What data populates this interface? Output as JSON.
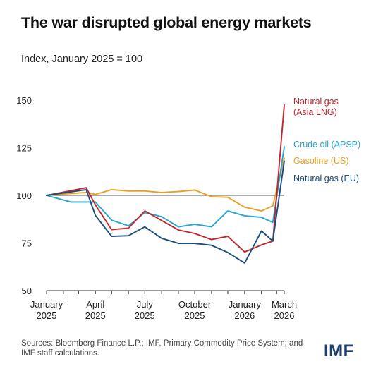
{
  "title": "The war disrupted global energy markets",
  "subtitle": "Index, January 2025 = 100",
  "source_note": "Sources: Bloomberg Finance L.P.; IMF, Primary Commodity Price System; and IMF staff calculations.",
  "logo": "IMF",
  "chart_data": {
    "type": "line",
    "ylim": [
      50,
      150
    ],
    "yticks": [
      50,
      75,
      100,
      125,
      150
    ],
    "reference_line": 100,
    "grid": false,
    "x_range": [
      "2025-01",
      "2026-03"
    ],
    "x_tick_labels": [
      {
        "date": "2025-01",
        "line1": "January",
        "line2": "2025"
      },
      {
        "date": "2025-04",
        "line1": "April",
        "line2": "2025"
      },
      {
        "date": "2025-07",
        "line1": "July",
        "line2": "2025"
      },
      {
        "date": "2025-10",
        "line1": "October",
        "line2": "2025"
      },
      {
        "date": "2026-01",
        "line1": "January",
        "line2": "2026"
      },
      {
        "date": "2026-03",
        "line1": "March",
        "line2": "2026"
      }
    ],
    "series": [
      {
        "name": "Gasoline (US)",
        "color": "#E8A023",
        "label_lines": [
          "Gasoline (US)"
        ],
        "points": [
          [
            "2025-01-01",
            100
          ],
          [
            "2025-02-15",
            101
          ],
          [
            "2025-03-15",
            101.5
          ],
          [
            "2025-04-01",
            100.5
          ],
          [
            "2025-05-01",
            103
          ],
          [
            "2025-06-01",
            102.3
          ],
          [
            "2025-07-01",
            102.3
          ],
          [
            "2025-08-01",
            101.5
          ],
          [
            "2025-09-01",
            102
          ],
          [
            "2025-10-01",
            102.8
          ],
          [
            "2025-11-01",
            99.3
          ],
          [
            "2025-12-01",
            99
          ],
          [
            "2026-01-01",
            93.8
          ],
          [
            "2026-02-01",
            91.8
          ],
          [
            "2026-02-22",
            94.5
          ],
          [
            "2026-03-15",
            119.5
          ]
        ]
      },
      {
        "name": "Crude oil (APSP)",
        "color": "#2AA5CE",
        "label_lines": [
          "Crude oil (APSP)"
        ],
        "points": [
          [
            "2025-01-01",
            100
          ],
          [
            "2025-02-15",
            96.5
          ],
          [
            "2025-04-01",
            96.5
          ],
          [
            "2025-05-01",
            87
          ],
          [
            "2025-06-01",
            84
          ],
          [
            "2025-07-01",
            91
          ],
          [
            "2025-08-01",
            88.8
          ],
          [
            "2025-09-01",
            83.5
          ],
          [
            "2025-10-01",
            84.8
          ],
          [
            "2025-11-01",
            83.5
          ],
          [
            "2025-12-01",
            91.8
          ],
          [
            "2026-01-01",
            89.3
          ],
          [
            "2026-02-01",
            88.5
          ],
          [
            "2026-02-22",
            85.8
          ],
          [
            "2026-03-15",
            125.5
          ]
        ]
      },
      {
        "name": "Natural gas (Asia LNG)",
        "color": "#C0272D",
        "label_lines": [
          "Natural gas",
          "(Asia LNG)"
        ],
        "points": [
          [
            "2025-01-01",
            100
          ],
          [
            "2025-03-15",
            104
          ],
          [
            "2025-04-01",
            95
          ],
          [
            "2025-05-01",
            82
          ],
          [
            "2025-06-01",
            82.8
          ],
          [
            "2025-07-01",
            91.8
          ],
          [
            "2025-08-01",
            86.8
          ],
          [
            "2025-09-01",
            81.8
          ],
          [
            "2025-10-01",
            80
          ],
          [
            "2025-11-01",
            76.8
          ],
          [
            "2025-12-01",
            78.5
          ],
          [
            "2026-01-01",
            70.3
          ],
          [
            "2026-02-01",
            74
          ],
          [
            "2026-02-22",
            76
          ],
          [
            "2026-03-15",
            147.5
          ]
        ]
      },
      {
        "name": "Natural gas (EU)",
        "color": "#1B4D7E",
        "label_lines": [
          "Natural gas (EU)"
        ],
        "points": [
          [
            "2025-01-01",
            100
          ],
          [
            "2025-03-15",
            103
          ],
          [
            "2025-04-01",
            89.5
          ],
          [
            "2025-05-01",
            78.5
          ],
          [
            "2025-06-01",
            78.8
          ],
          [
            "2025-07-01",
            83.5
          ],
          [
            "2025-08-01",
            77.5
          ],
          [
            "2025-09-01",
            74.8
          ],
          [
            "2025-10-01",
            74.8
          ],
          [
            "2025-11-01",
            73.8
          ],
          [
            "2025-12-01",
            70
          ],
          [
            "2026-01-01",
            64.5
          ],
          [
            "2026-02-01",
            81.3
          ],
          [
            "2026-02-22",
            76
          ],
          [
            "2026-03-15",
            118
          ]
        ]
      }
    ]
  }
}
